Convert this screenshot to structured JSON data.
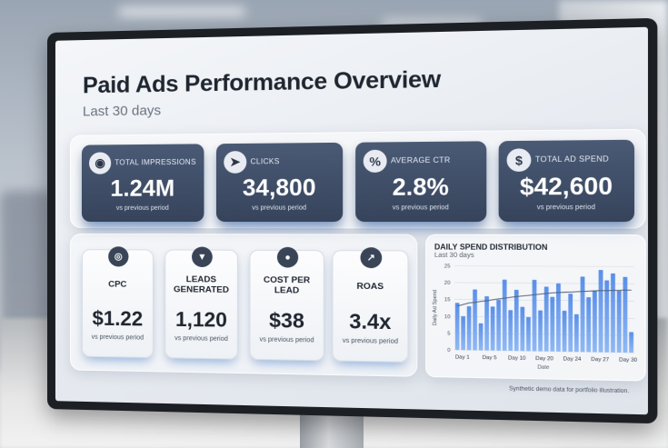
{
  "dashboard": {
    "title": "Paid Ads Performance Overview",
    "subtitle": "Last 30 days"
  },
  "kpis": [
    {
      "icon": "eye-icon",
      "glyph": "◉",
      "label": "TOTAL IMPRESSIONS",
      "value": "1.24M",
      "comparison": "vs previous period"
    },
    {
      "icon": "cursor-click-icon",
      "glyph": "➤",
      "label": "CLICKS",
      "value": "34,800",
      "comparison": "vs previous period"
    },
    {
      "icon": "percent-icon",
      "glyph": "%",
      "label": "AVERAGE CTR",
      "value": "2.8%",
      "comparison": "vs previous period"
    },
    {
      "icon": "dollar-spend-icon",
      "glyph": "$",
      "label": "TOTAL AD SPEND",
      "value": "$42,600",
      "comparison": "vs previous period"
    }
  ],
  "metrics": [
    {
      "icon": "coins-icon",
      "glyph": "◎",
      "label": "CPC",
      "value": "$1.22",
      "comparison": "vs previous period"
    },
    {
      "icon": "funnel-icon",
      "glyph": "▼",
      "label": "LEADS GENERATED",
      "value": "1,120",
      "comparison": "vs previous period"
    },
    {
      "icon": "user-dollar-icon",
      "glyph": "●",
      "label": "COST PER LEAD",
      "value": "$38",
      "comparison": "vs previous period"
    },
    {
      "icon": "trend-up-icon",
      "glyph": "↗",
      "label": "ROAS",
      "value": "3.4x",
      "comparison": "vs previous period"
    }
  ],
  "chart_data": {
    "type": "bar",
    "title": "DAILY SPEND DISTRIBUTION",
    "subtitle": "Last 30 days",
    "xlabel": "Date",
    "ylabel": "Daily Ad Spend",
    "ylim": [
      0,
      25
    ],
    "yticks": [
      0,
      5,
      10,
      15,
      20,
      25
    ],
    "xtick_labels": [
      "Day 1",
      "Day 5",
      "Day 10",
      "Day 20",
      "Day 24",
      "Day 27",
      "Day 30"
    ],
    "categories": [
      "1",
      "2",
      "3",
      "4",
      "5",
      "6",
      "7",
      "8",
      "9",
      "10",
      "11",
      "12",
      "13",
      "14",
      "15",
      "16",
      "17",
      "18",
      "19",
      "20",
      "21",
      "22",
      "23",
      "24",
      "25",
      "26",
      "27",
      "28",
      "29",
      "30"
    ],
    "series": [
      {
        "values": [
          14,
          10,
          13,
          18,
          8,
          16,
          13,
          15,
          21,
          12,
          18,
          13,
          10,
          21,
          12,
          19,
          16,
          20,
          12,
          17,
          11,
          22,
          16,
          18,
          24,
          21,
          23,
          18,
          22,
          6
        ]
      }
    ],
    "trend": [
      13,
      13.5,
      14,
      14.2,
      14.5,
      14.7,
      15,
      15.3,
      15.5,
      15.8,
      16,
      16.2,
      16.4,
      16.6,
      16.8,
      17,
      17.2,
      17.3,
      17.4,
      17.5,
      17.6,
      17.7,
      17.8,
      17.9,
      18,
      18,
      18.1,
      18.1,
      18.2,
      18.2
    ],
    "colors": {
      "bar": "#8fb8f5",
      "bar_top": "#5a8fe8",
      "trend": "#4f5b70"
    },
    "grid": true
  },
  "footnote": "Synthetic demo data for portfolio illustration."
}
